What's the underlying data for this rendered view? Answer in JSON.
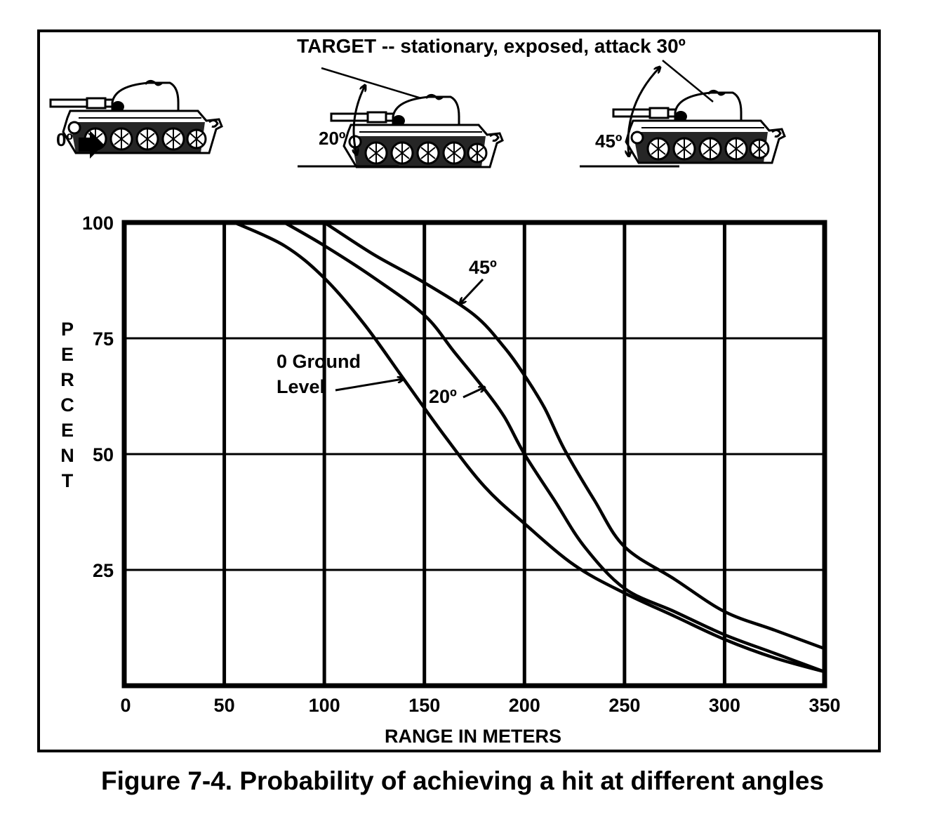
{
  "figure": {
    "caption": "Figure 7-4. Probability of achieving a hit at different angles",
    "target_label": "TARGET -- stationary, exposed, attack 30º",
    "tank_angles": [
      "0º",
      "20º",
      "45º"
    ]
  },
  "chart_data": {
    "type": "line",
    "xlabel": "RANGE IN METERS",
    "ylabel": "PERCENT",
    "xlim": [
      0,
      350
    ],
    "ylim": [
      0,
      100
    ],
    "x_ticks": [
      0,
      50,
      100,
      150,
      200,
      250,
      300,
      350
    ],
    "y_ticks": [
      25,
      50,
      75,
      100
    ],
    "grid": true,
    "series": [
      {
        "name": "0 Ground Level",
        "label_lines": [
          "0 Ground",
          "Level"
        ],
        "x": [
          55,
          80,
          100,
          120,
          140,
          160,
          180,
          200,
          225,
          250,
          275,
          300,
          325,
          350
        ],
        "y": [
          100,
          95,
          88,
          78,
          66,
          54,
          43,
          35,
          26,
          20,
          15,
          10,
          6,
          3
        ]
      },
      {
        "name": "20º",
        "label_lines": [
          "20º"
        ],
        "x": [
          80,
          100,
          125,
          150,
          165,
          180,
          190,
          200,
          215,
          230,
          250,
          275,
          300,
          325,
          350
        ],
        "y": [
          100,
          95,
          88,
          80,
          72,
          64,
          58,
          50,
          40,
          30,
          21,
          16,
          11,
          7,
          3
        ]
      },
      {
        "name": "45º",
        "label_lines": [
          "45º"
        ],
        "x": [
          100,
          125,
          150,
          175,
          190,
          200,
          210,
          220,
          235,
          250,
          275,
          300,
          325,
          350
        ],
        "y": [
          100,
          93,
          87,
          80,
          73,
          67,
          60,
          51,
          40,
          30,
          23,
          16,
          12,
          8
        ]
      }
    ]
  }
}
